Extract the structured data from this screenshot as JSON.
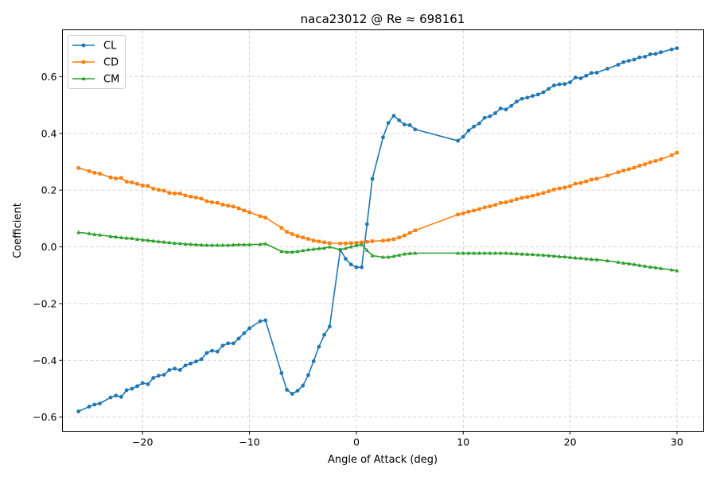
{
  "chart_data": {
    "type": "line",
    "title": "naca23012 @ Re ≈ 698161",
    "xlabel": "Angle of Attack (deg)",
    "ylabel": "Coefficient",
    "xlim": [
      -27.5,
      32.5
    ],
    "ylim": [
      -0.65,
      0.765
    ],
    "xticks": [
      -20,
      -10,
      0,
      10,
      20,
      30
    ],
    "xtick_labels": [
      "−20",
      "−10",
      "0",
      "10",
      "20",
      "30"
    ],
    "yticks": [
      -0.6,
      -0.4,
      -0.2,
      0.0,
      0.2,
      0.4,
      0.6
    ],
    "ytick_labels": [
      "−0.6",
      "−0.4",
      "−0.2",
      "0.0",
      "0.2",
      "0.4",
      "0.6"
    ],
    "grid": true,
    "legend_position": "top-left",
    "series": [
      {
        "name": "CL",
        "color": "#1f77b4",
        "marker": "circle",
        "points": [
          [
            -26,
            -0.58
          ],
          [
            -25,
            -0.563
          ],
          [
            -24.5,
            -0.556
          ],
          [
            -24,
            -0.552
          ],
          [
            -23,
            -0.531
          ],
          [
            -22.5,
            -0.524
          ],
          [
            -22,
            -0.529
          ],
          [
            -21.5,
            -0.505
          ],
          [
            -21,
            -0.5
          ],
          [
            -20.5,
            -0.491
          ],
          [
            -20,
            -0.48
          ],
          [
            -19.5,
            -0.484
          ],
          [
            -19,
            -0.462
          ],
          [
            -18.5,
            -0.454
          ],
          [
            -18,
            -0.451
          ],
          [
            -17.5,
            -0.434
          ],
          [
            -17,
            -0.429
          ],
          [
            -16.5,
            -0.434
          ],
          [
            -16,
            -0.418
          ],
          [
            -15.5,
            -0.411
          ],
          [
            -15,
            -0.404
          ],
          [
            -14.5,
            -0.396
          ],
          [
            -14,
            -0.374
          ],
          [
            -13.5,
            -0.366
          ],
          [
            -13,
            -0.369
          ],
          [
            -12.5,
            -0.348
          ],
          [
            -12,
            -0.34
          ],
          [
            -11.5,
            -0.34
          ],
          [
            -11,
            -0.323
          ],
          [
            -10.5,
            -0.304
          ],
          [
            -10,
            -0.287
          ],
          [
            -9,
            -0.262
          ],
          [
            -8.5,
            -0.259
          ],
          [
            -7,
            -0.445
          ],
          [
            -6.5,
            -0.504
          ],
          [
            -6,
            -0.518
          ],
          [
            -5.5,
            -0.507
          ],
          [
            -5,
            -0.489
          ],
          [
            -4.5,
            -0.452
          ],
          [
            -4,
            -0.403
          ],
          [
            -3.5,
            -0.352
          ],
          [
            -3,
            -0.31
          ],
          [
            -2.5,
            -0.281
          ],
          [
            -1.5,
            -0.01
          ],
          [
            -1,
            -0.042
          ],
          [
            -0.5,
            -0.062
          ],
          [
            0,
            -0.072
          ],
          [
            0.5,
            -0.072
          ],
          [
            1,
            0.08
          ],
          [
            1.5,
            0.24
          ],
          [
            2.5,
            0.386
          ],
          [
            3,
            0.437
          ],
          [
            3.5,
            0.462
          ],
          [
            4,
            0.446
          ],
          [
            4.5,
            0.431
          ],
          [
            5,
            0.429
          ],
          [
            5.5,
            0.414
          ],
          [
            9.5,
            0.374
          ],
          [
            10,
            0.388
          ],
          [
            10.5,
            0.41
          ],
          [
            11,
            0.424
          ],
          [
            11.5,
            0.435
          ],
          [
            12,
            0.455
          ],
          [
            12.5,
            0.46
          ],
          [
            13,
            0.471
          ],
          [
            13.5,
            0.488
          ],
          [
            14,
            0.484
          ],
          [
            14.5,
            0.497
          ],
          [
            15,
            0.512
          ],
          [
            15.5,
            0.522
          ],
          [
            16,
            0.526
          ],
          [
            16.5,
            0.532
          ],
          [
            17,
            0.537
          ],
          [
            17.5,
            0.545
          ],
          [
            18,
            0.557
          ],
          [
            18.5,
            0.569
          ],
          [
            19,
            0.573
          ],
          [
            19.5,
            0.574
          ],
          [
            20,
            0.58
          ],
          [
            20.5,
            0.597
          ],
          [
            21,
            0.594
          ],
          [
            21.5,
            0.603
          ],
          [
            22,
            0.613
          ],
          [
            22.5,
            0.614
          ],
          [
            23.5,
            0.628
          ],
          [
            24.5,
            0.642
          ],
          [
            25,
            0.651
          ],
          [
            25.5,
            0.656
          ],
          [
            26,
            0.66
          ],
          [
            26.5,
            0.668
          ],
          [
            27,
            0.67
          ],
          [
            27.5,
            0.679
          ],
          [
            28,
            0.68
          ],
          [
            28.5,
            0.686
          ],
          [
            29.5,
            0.696
          ],
          [
            30,
            0.7
          ]
        ]
      },
      {
        "name": "CD",
        "color": "#ff7f0e",
        "marker": "square",
        "points": [
          [
            -26,
            0.278
          ],
          [
            -25,
            0.267
          ],
          [
            -24.5,
            0.261
          ],
          [
            -24,
            0.258
          ],
          [
            -23,
            0.245
          ],
          [
            -22.5,
            0.241
          ],
          [
            -22,
            0.243
          ],
          [
            -21.5,
            0.23
          ],
          [
            -21,
            0.227
          ],
          [
            -20.5,
            0.222
          ],
          [
            -20,
            0.216
          ],
          [
            -19.5,
            0.215
          ],
          [
            -19,
            0.205
          ],
          [
            -18.5,
            0.201
          ],
          [
            -18,
            0.198
          ],
          [
            -17.5,
            0.19
          ],
          [
            -17,
            0.188
          ],
          [
            -16.5,
            0.188
          ],
          [
            -16,
            0.181
          ],
          [
            -15.5,
            0.177
          ],
          [
            -15,
            0.174
          ],
          [
            -14.5,
            0.17
          ],
          [
            -14,
            0.161
          ],
          [
            -13.5,
            0.157
          ],
          [
            -13,
            0.155
          ],
          [
            -12.5,
            0.149
          ],
          [
            -12,
            0.145
          ],
          [
            -11.5,
            0.142
          ],
          [
            -11,
            0.136
          ],
          [
            -10.5,
            0.128
          ],
          [
            -10,
            0.122
          ],
          [
            -9,
            0.108
          ],
          [
            -8.5,
            0.103
          ],
          [
            -7,
            0.067
          ],
          [
            -6.5,
            0.053
          ],
          [
            -6,
            0.045
          ],
          [
            -5.5,
            0.038
          ],
          [
            -5,
            0.033
          ],
          [
            -4.5,
            0.028
          ],
          [
            -4,
            0.022
          ],
          [
            -3.5,
            0.019
          ],
          [
            -3,
            0.016
          ],
          [
            -2.5,
            0.013
          ],
          [
            -1.5,
            0.012
          ],
          [
            -1,
            0.012
          ],
          [
            -0.5,
            0.013
          ],
          [
            0,
            0.014
          ],
          [
            0.5,
            0.016
          ],
          [
            1,
            0.018
          ],
          [
            1.5,
            0.02
          ],
          [
            2.5,
            0.022
          ],
          [
            3,
            0.024
          ],
          [
            3.5,
            0.027
          ],
          [
            4,
            0.033
          ],
          [
            4.5,
            0.04
          ],
          [
            5,
            0.049
          ],
          [
            5.5,
            0.058
          ],
          [
            9.5,
            0.114
          ],
          [
            10,
            0.118
          ],
          [
            10.5,
            0.124
          ],
          [
            11,
            0.128
          ],
          [
            11.5,
            0.133
          ],
          [
            12,
            0.139
          ],
          [
            12.5,
            0.143
          ],
          [
            13,
            0.148
          ],
          [
            13.5,
            0.155
          ],
          [
            14,
            0.157
          ],
          [
            14.5,
            0.162
          ],
          [
            15,
            0.168
          ],
          [
            15.5,
            0.173
          ],
          [
            16,
            0.176
          ],
          [
            16.5,
            0.18
          ],
          [
            17,
            0.185
          ],
          [
            17.5,
            0.19
          ],
          [
            18,
            0.196
          ],
          [
            18.5,
            0.202
          ],
          [
            19,
            0.206
          ],
          [
            19.5,
            0.209
          ],
          [
            20,
            0.214
          ],
          [
            20.5,
            0.223
          ],
          [
            21,
            0.225
          ],
          [
            21.5,
            0.231
          ],
          [
            22,
            0.237
          ],
          [
            22.5,
            0.24
          ],
          [
            23.5,
            0.251
          ],
          [
            24.5,
            0.263
          ],
          [
            25,
            0.269
          ],
          [
            25.5,
            0.274
          ],
          [
            26,
            0.279
          ],
          [
            26.5,
            0.286
          ],
          [
            27,
            0.291
          ],
          [
            27.5,
            0.298
          ],
          [
            28,
            0.303
          ],
          [
            28.5,
            0.309
          ],
          [
            29.5,
            0.323
          ],
          [
            30,
            0.332
          ]
        ]
      },
      {
        "name": "CM",
        "color": "#2ca02c",
        "marker": "triangle",
        "points": [
          [
            -26,
            0.051
          ],
          [
            -25,
            0.047
          ],
          [
            -24.5,
            0.044
          ],
          [
            -24,
            0.042
          ],
          [
            -23,
            0.037
          ],
          [
            -22.5,
            0.035
          ],
          [
            -22,
            0.033
          ],
          [
            -21.5,
            0.031
          ],
          [
            -21,
            0.03
          ],
          [
            -20.5,
            0.027
          ],
          [
            -20,
            0.025
          ],
          [
            -19.5,
            0.023
          ],
          [
            -19,
            0.021
          ],
          [
            -18.5,
            0.019
          ],
          [
            -18,
            0.017
          ],
          [
            -17.5,
            0.015
          ],
          [
            -17,
            0.013
          ],
          [
            -16.5,
            0.012
          ],
          [
            -16,
            0.01
          ],
          [
            -15.5,
            0.009
          ],
          [
            -15,
            0.008
          ],
          [
            -14.5,
            0.007
          ],
          [
            -14,
            0.006
          ],
          [
            -13.5,
            0.006
          ],
          [
            -13,
            0.006
          ],
          [
            -12.5,
            0.006
          ],
          [
            -12,
            0.006
          ],
          [
            -11.5,
            0.007
          ],
          [
            -11,
            0.008
          ],
          [
            -10.5,
            0.008
          ],
          [
            -10,
            0.008
          ],
          [
            -9,
            0.009
          ],
          [
            -8.5,
            0.011
          ],
          [
            -7,
            -0.016
          ],
          [
            -6.5,
            -0.018
          ],
          [
            -6,
            -0.018
          ],
          [
            -5.5,
            -0.016
          ],
          [
            -5,
            -0.013
          ],
          [
            -4.5,
            -0.01
          ],
          [
            -4,
            -0.008
          ],
          [
            -3.5,
            -0.006
          ],
          [
            -3,
            -0.004
          ],
          [
            -2.5,
            0.0
          ],
          [
            -1.5,
            -0.01
          ],
          [
            -1,
            -0.005
          ],
          [
            -0.5,
            0.0
          ],
          [
            0,
            0.005
          ],
          [
            0.5,
            0.008
          ],
          [
            1,
            -0.012
          ],
          [
            1.5,
            -0.031
          ],
          [
            2.5,
            -0.036
          ],
          [
            3,
            -0.036
          ],
          [
            3.5,
            -0.033
          ],
          [
            4,
            -0.029
          ],
          [
            4.5,
            -0.025
          ],
          [
            5,
            -0.023
          ],
          [
            5.5,
            -0.022
          ],
          [
            9.5,
            -0.022
          ],
          [
            10,
            -0.022
          ],
          [
            10.5,
            -0.022
          ],
          [
            11,
            -0.022
          ],
          [
            11.5,
            -0.022
          ],
          [
            12,
            -0.022
          ],
          [
            12.5,
            -0.022
          ],
          [
            13,
            -0.022
          ],
          [
            13.5,
            -0.022
          ],
          [
            14,
            -0.022
          ],
          [
            14.5,
            -0.023
          ],
          [
            15,
            -0.024
          ],
          [
            15.5,
            -0.025
          ],
          [
            16,
            -0.026
          ],
          [
            16.5,
            -0.027
          ],
          [
            17,
            -0.028
          ],
          [
            17.5,
            -0.029
          ],
          [
            18,
            -0.031
          ],
          [
            18.5,
            -0.032
          ],
          [
            19,
            -0.034
          ],
          [
            19.5,
            -0.035
          ],
          [
            20,
            -0.037
          ],
          [
            20.5,
            -0.039
          ],
          [
            21,
            -0.04
          ],
          [
            21.5,
            -0.042
          ],
          [
            22,
            -0.044
          ],
          [
            22.5,
            -0.045
          ],
          [
            23.5,
            -0.049
          ],
          [
            24.5,
            -0.054
          ],
          [
            25,
            -0.057
          ],
          [
            25.5,
            -0.059
          ],
          [
            26,
            -0.062
          ],
          [
            26.5,
            -0.065
          ],
          [
            27,
            -0.068
          ],
          [
            27.5,
            -0.071
          ],
          [
            28,
            -0.073
          ],
          [
            28.5,
            -0.076
          ],
          [
            29.5,
            -0.081
          ],
          [
            30,
            -0.084
          ]
        ]
      }
    ]
  }
}
